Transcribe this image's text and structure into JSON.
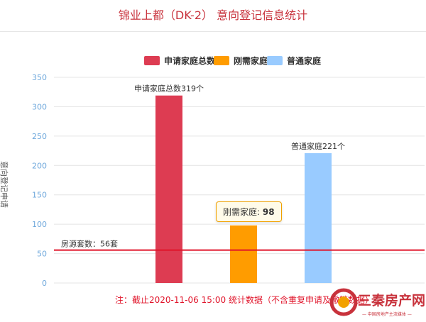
{
  "title": "锦业上都（DK-2） 意向登记信息统计",
  "legend": [
    {
      "label": "申请家庭总数",
      "color": "#dd3c52"
    },
    {
      "label": "刚需家庭",
      "color": "#ff9c00"
    },
    {
      "label": "普通家庭",
      "color": "#99cbff"
    }
  ],
  "ylabel": "意向登记申请",
  "footnote": "注：截止2020-11-06 15:00 统计数据（不含重复申请及撤销数据）",
  "tooltip": {
    "name": "刚需家庭",
    "value": "98"
  },
  "logo": {
    "text": "三秦房产网",
    "subtext": "— 中国房地产主流媒体 —"
  },
  "colors": {
    "title": "#c8323c",
    "axis_tick": "#6fa8dc",
    "grid": "#e4e4e4",
    "plotline": "#e0142a"
  },
  "chart_data": {
    "type": "bar",
    "categories": [
      "申请家庭总数",
      "刚需家庭",
      "普通家庭"
    ],
    "values": [
      319,
      98,
      221
    ],
    "colors": [
      "#dd3c52",
      "#ff9c00",
      "#99cbff"
    ],
    "data_labels": [
      "申请家庭总数319个",
      "",
      "普通家庭221个"
    ],
    "ylabel": "意向登记申请",
    "ylim": [
      0,
      350
    ],
    "yticks": [
      0,
      50,
      100,
      150,
      200,
      250,
      300,
      350
    ],
    "grid": true,
    "plot_line": {
      "value": 56,
      "label": "房源套数：56套"
    }
  }
}
